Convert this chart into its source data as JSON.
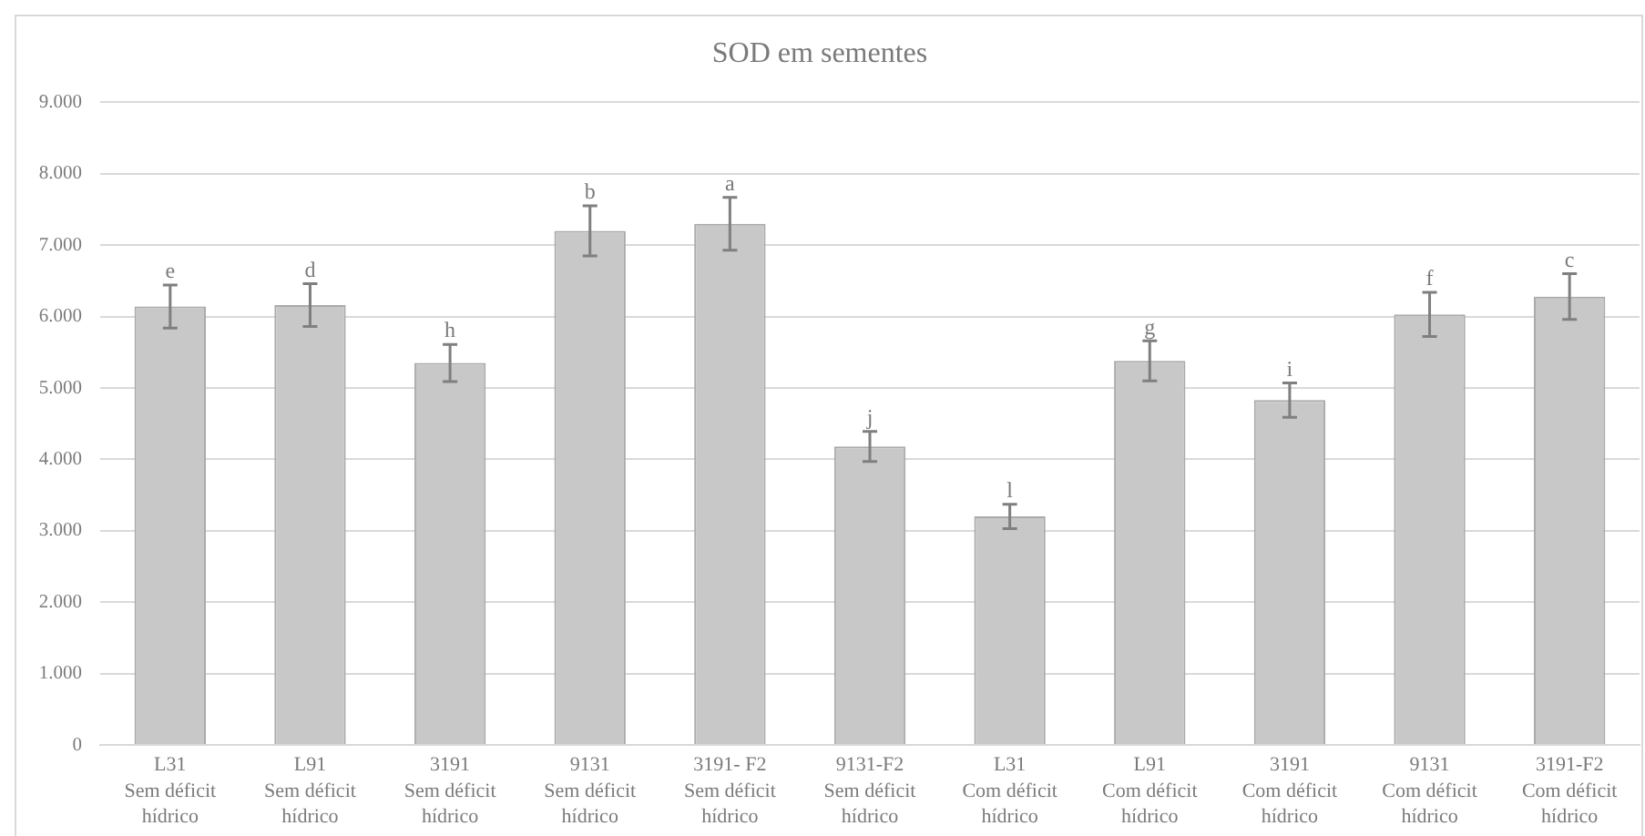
{
  "chart_data": {
    "type": "bar",
    "title": "SOD em sementes",
    "categories": [
      "L31\nSem déficit\nhídrico",
      "L91\nSem déficit\nhídrico",
      "3191\nSem déficit\nhídrico",
      "9131\nSem déficit\nhídrico",
      "3191- F2\nSem déficit\nhídrico",
      "9131-F2\nSem déficit\nhídrico",
      "L31\nCom déficit\nhídrico",
      "L91\nCom déficit\nhídrico",
      "3191\nCom déficit\nhídrico",
      "9131\nCom déficit\nhídrico",
      "3191-F2\nCom déficit\nhídrico"
    ],
    "values": [
      6140,
      6160,
      5350,
      7200,
      7300,
      4180,
      3200,
      5380,
      4830,
      6030,
      6280
    ],
    "errors": [
      300,
      300,
      260,
      350,
      370,
      210,
      170,
      280,
      240,
      310,
      320
    ],
    "value_labels": [
      "e",
      "d",
      "h",
      "b",
      "a",
      "j",
      "l",
      "g",
      "i",
      "f",
      "c"
    ],
    "color": "#c8c8c8",
    "ylim": [
      0,
      9000
    ],
    "yticks": [
      0,
      {
        "value": 1000,
        "label": "1.000"
      },
      {
        "value": 2000,
        "label": "2.000"
      },
      {
        "value": 3000,
        "label": "3.000"
      },
      {
        "value": 4000,
        "label": "4.000"
      },
      {
        "value": 5000,
        "label": "5.000"
      },
      {
        "value": 6000,
        "label": "6.000"
      },
      {
        "value": 7000,
        "label": "7.000"
      },
      {
        "value": 8000,
        "label": "8.000"
      },
      {
        "value": 9000,
        "label": "9.000"
      }
    ],
    "grid": "y",
    "legend": false
  }
}
